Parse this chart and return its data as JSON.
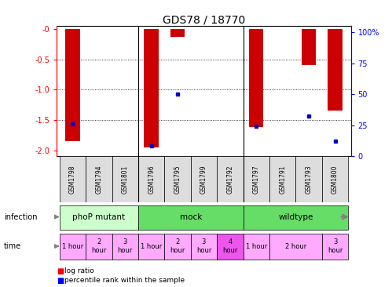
{
  "title": "GDS78 / 18770",
  "samples": [
    "GSM1798",
    "GSM1794",
    "GSM1801",
    "GSM1796",
    "GSM1795",
    "GSM1799",
    "GSM1792",
    "GSM1797",
    "GSM1791",
    "GSM1793",
    "GSM1800"
  ],
  "log_ratio": [
    -1.85,
    0,
    0,
    -1.95,
    -0.13,
    0,
    0,
    -1.62,
    0,
    -0.6,
    -1.35
  ],
  "percentile_lr": [
    -1.57,
    0,
    0,
    -1.92,
    -1.08,
    0,
    0,
    -1.6,
    0,
    -1.43,
    -1.85
  ],
  "has_log_ratio": [
    true,
    false,
    false,
    true,
    true,
    false,
    false,
    true,
    false,
    true,
    true
  ],
  "has_percentile": [
    true,
    false,
    false,
    true,
    true,
    false,
    false,
    true,
    false,
    true,
    true
  ],
  "ylim_left": [
    -2.1,
    0.05
  ],
  "yticks_left": [
    0,
    -0.5,
    -1.0,
    -1.5,
    -2.0
  ],
  "yticks_right": [
    0,
    25,
    50,
    75,
    100
  ],
  "bar_color": "#cc0000",
  "dot_color": "#0000cc",
  "infection_groups": [
    {
      "label": "phoP mutant",
      "start": 0,
      "end": 3,
      "color": "#ccffcc"
    },
    {
      "label": "mock",
      "start": 3,
      "end": 7,
      "color": "#66dd66"
    },
    {
      "label": "wildtype",
      "start": 7,
      "end": 11,
      "color": "#66dd66"
    }
  ],
  "time_data": [
    {
      "label": "1 hour",
      "col": 0,
      "span": 1,
      "color": "#ffaaff"
    },
    {
      "label": "2\nhour",
      "col": 1,
      "span": 1,
      "color": "#ffaaff"
    },
    {
      "label": "3\nhour",
      "col": 2,
      "span": 1,
      "color": "#ffaaff"
    },
    {
      "label": "1 hour",
      "col": 3,
      "span": 1,
      "color": "#ffaaff"
    },
    {
      "label": "2\nhour",
      "col": 4,
      "span": 1,
      "color": "#ffaaff"
    },
    {
      "label": "3\nhour",
      "col": 5,
      "span": 1,
      "color": "#ffaaff"
    },
    {
      "label": "4\nhour",
      "col": 6,
      "span": 1,
      "color": "#ee55ee"
    },
    {
      "label": "1 hour",
      "col": 7,
      "span": 1,
      "color": "#ffaaff"
    },
    {
      "label": "2 hour",
      "col": 8,
      "span": 2,
      "color": "#ffaaff"
    },
    {
      "label": "3\nhour",
      "col": 10,
      "span": 1,
      "color": "#ffaaff"
    }
  ]
}
